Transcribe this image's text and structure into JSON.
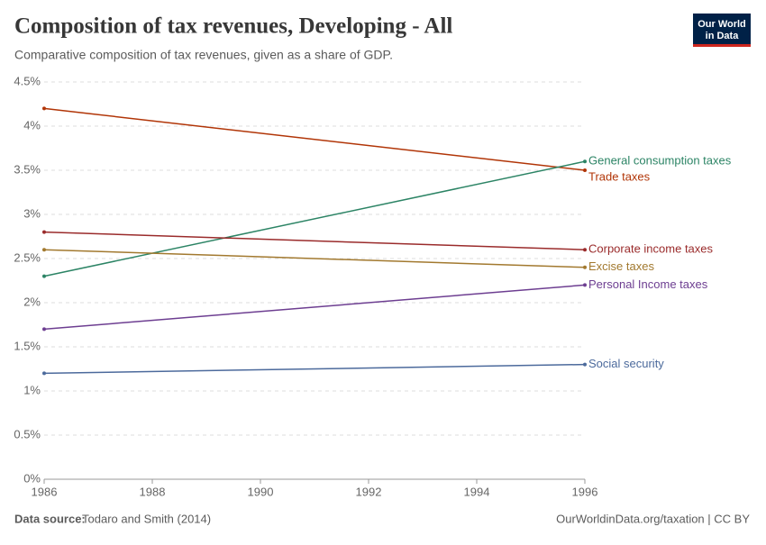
{
  "chart_data": {
    "type": "line",
    "title": "Composition of tax revenues, Developing - All",
    "subtitle": "Comparative composition of tax revenues, given as a share of GDP.",
    "x": [
      1986,
      1996
    ],
    "series": [
      {
        "name": "Trade taxes",
        "color": "#b13507",
        "values": [
          4.2,
          3.5
        ]
      },
      {
        "name": "General consumption taxes",
        "color": "#2c8465",
        "values": [
          2.3,
          3.6
        ]
      },
      {
        "name": "Corporate income taxes",
        "color": "#9a2b2b",
        "values": [
          2.8,
          2.6
        ]
      },
      {
        "name": "Excise taxes",
        "color": "#a2792f",
        "values": [
          2.6,
          2.4
        ]
      },
      {
        "name": "Personal Income taxes",
        "color": "#6d3e91",
        "values": [
          1.7,
          2.2
        ]
      },
      {
        "name": "Social security",
        "color": "#4c6a9c",
        "values": [
          1.2,
          1.3
        ]
      }
    ],
    "xlim": [
      1986,
      1996
    ],
    "xticks": [
      1986,
      1988,
      1990,
      1992,
      1994,
      1996
    ],
    "ylim": [
      0,
      4.5
    ],
    "yticks": [
      {
        "value": 0,
        "label": "0%"
      },
      {
        "value": 0.5,
        "label": "0.5%"
      },
      {
        "value": 1,
        "label": "1%"
      },
      {
        "value": 1.5,
        "label": "1.5%"
      },
      {
        "value": 2,
        "label": "2%"
      },
      {
        "value": 2.5,
        "label": "2.5%"
      },
      {
        "value": 3,
        "label": "3%"
      },
      {
        "value": 3.5,
        "label": "3.5%"
      },
      {
        "value": 4,
        "label": "4%"
      },
      {
        "value": 4.5,
        "label": "4.5%"
      }
    ],
    "grid": true,
    "source_label": "Data source:",
    "source": "Todaro and Smith (2014)",
    "credit": "OurWorldinData.org/taxation | CC BY",
    "logo": [
      "Our World",
      "in Data"
    ]
  }
}
